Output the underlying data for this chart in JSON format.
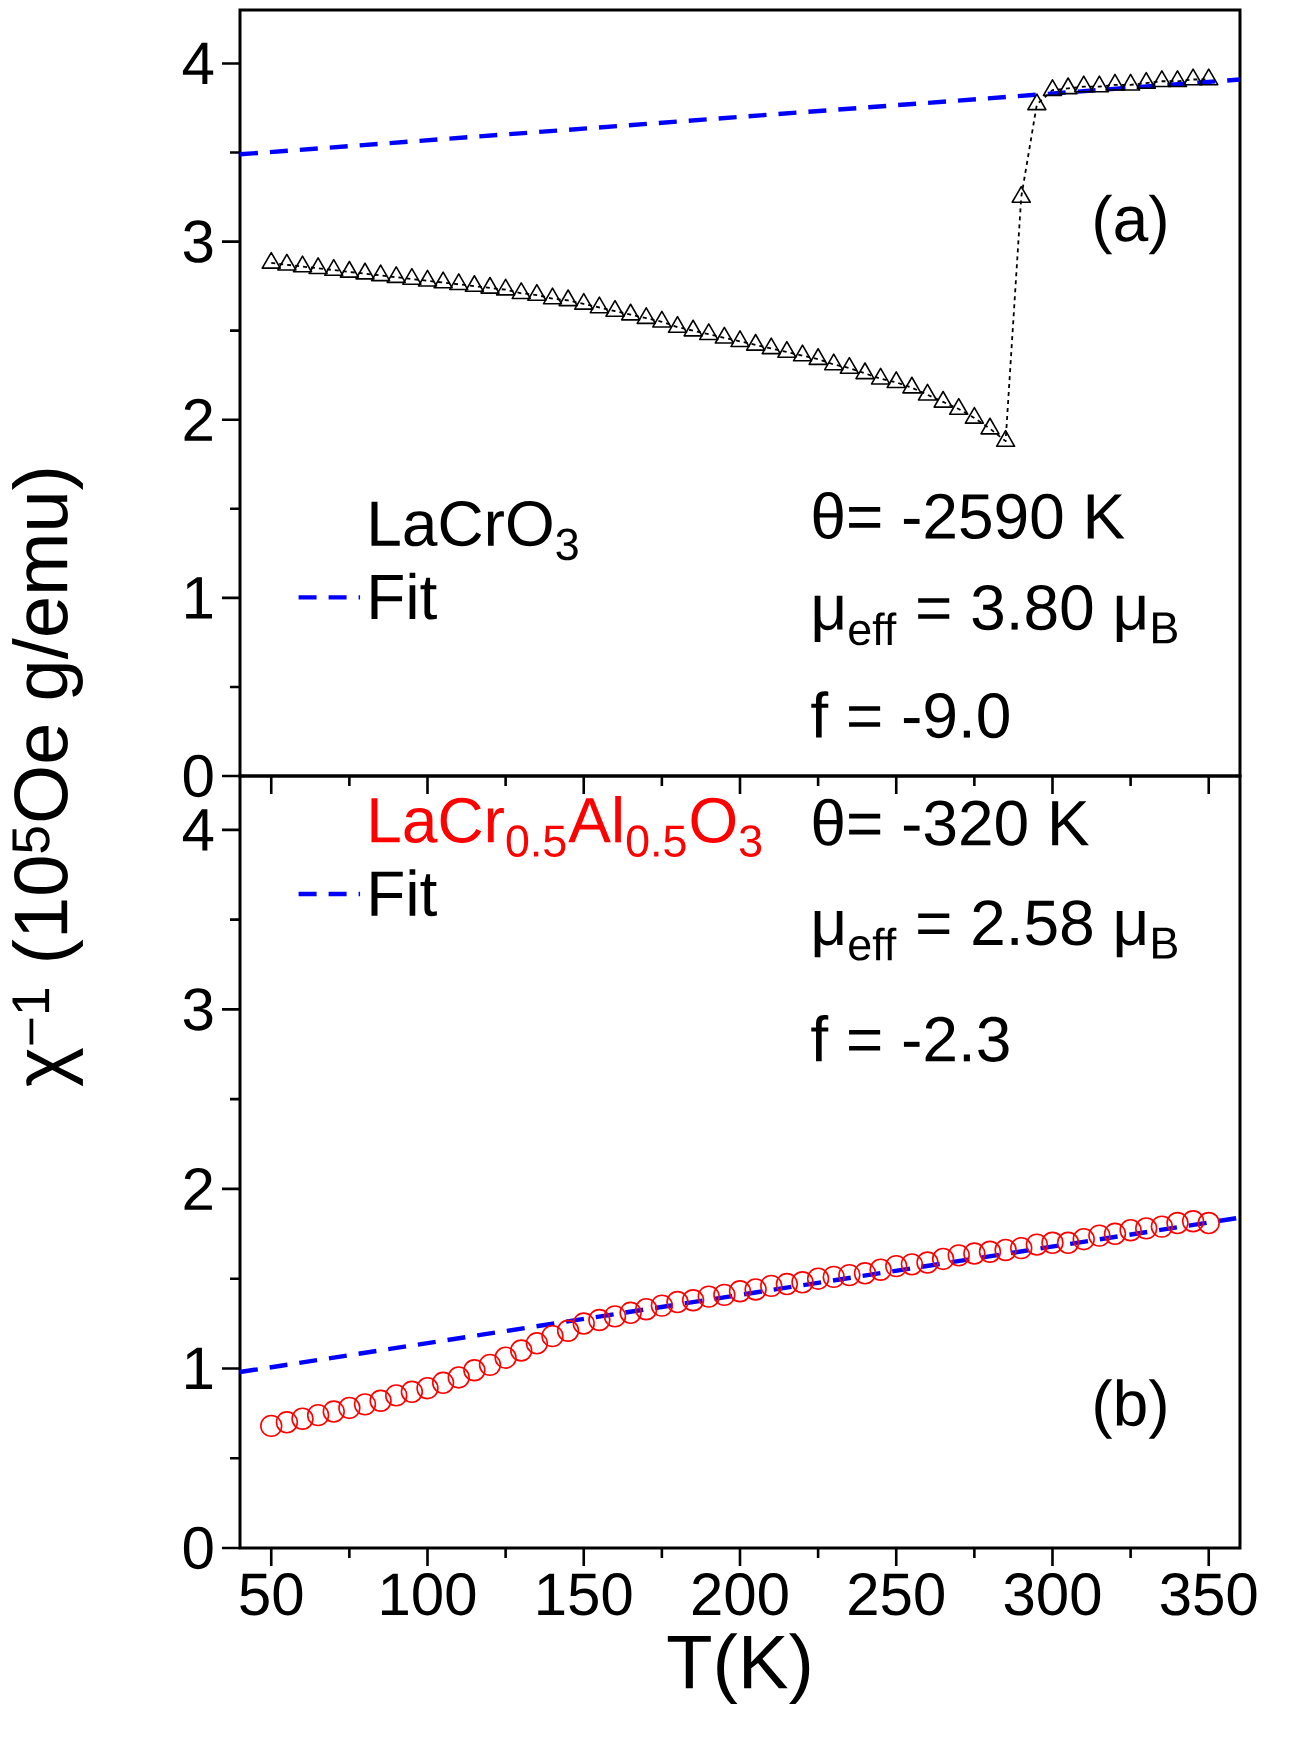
{
  "chart_data": [
    {
      "type": "line",
      "ylabel": "χ$^{−1}$ (10$^{5}$Oe g/emu)",
      "xlim": [
        40,
        360
      ],
      "ylim": [
        0,
        4.3
      ],
      "xticks": [
        50,
        100,
        150,
        200,
        250,
        300,
        350
      ],
      "yticks": [
        0,
        1,
        2,
        3,
        4
      ],
      "tick_labels": "y",
      "legend": "left",
      "annotations": [
        "(a)",
        "θ= -2590 K",
        "μ$_{eff}$ = 3.80 μ$_{B}$",
        "f = -9.0"
      ],
      "series": [
        {
          "name": "LaCrO$_{3}$",
          "color": "#000000",
          "marker": "triangle",
          "line_style": "dotted",
          "x": [
            50,
            55,
            60,
            65,
            70,
            75,
            80,
            85,
            90,
            95,
            100,
            105,
            110,
            115,
            120,
            125,
            130,
            135,
            140,
            145,
            150,
            155,
            160,
            165,
            170,
            175,
            180,
            185,
            190,
            195,
            200,
            205,
            210,
            215,
            220,
            225,
            230,
            235,
            240,
            245,
            250,
            255,
            260,
            265,
            270,
            275,
            280,
            285,
            290,
            295,
            300,
            305,
            310,
            315,
            320,
            325,
            330,
            335,
            340,
            345,
            350
          ],
          "values": [
            2.88,
            2.87,
            2.86,
            2.85,
            2.84,
            2.83,
            2.82,
            2.81,
            2.8,
            2.79,
            2.78,
            2.77,
            2.76,
            2.75,
            2.74,
            2.73,
            2.71,
            2.7,
            2.68,
            2.67,
            2.65,
            2.63,
            2.61,
            2.59,
            2.57,
            2.55,
            2.52,
            2.5,
            2.48,
            2.46,
            2.44,
            2.42,
            2.4,
            2.38,
            2.36,
            2.34,
            2.31,
            2.29,
            2.26,
            2.23,
            2.21,
            2.18,
            2.14,
            2.1,
            2.06,
            2.01,
            1.95,
            1.88,
            3.25,
            3.77,
            3.85,
            3.86,
            3.87,
            3.87,
            3.88,
            3.88,
            3.89,
            3.9,
            3.9,
            3.91,
            3.91
          ]
        },
        {
          "name": "Fit",
          "color": "#0000ff",
          "marker": "none",
          "line_style": "dashed",
          "x": [
            40,
            360
          ],
          "values": [
            3.49,
            3.91
          ]
        }
      ]
    },
    {
      "type": "scatter",
      "xlabel": "T(K)",
      "xlim": [
        40,
        360
      ],
      "ylim": [
        0,
        4.3
      ],
      "xticks": [
        50,
        100,
        150,
        200,
        250,
        300,
        350
      ],
      "yticks": [
        0,
        1,
        2,
        3,
        4
      ],
      "legend": "top left",
      "annotations": [
        "θ= -320 K",
        "μ$_{eff}$ = 2.58 μ$_{B}$",
        "f = -2.3",
        "(b)"
      ],
      "series": [
        {
          "name": "LaCr$_{0.5}$Al$_{0.5}$O$_{3}$",
          "color": "#ff0000",
          "marker": "circle",
          "x": [
            50,
            55,
            60,
            65,
            70,
            75,
            80,
            85,
            90,
            95,
            100,
            105,
            110,
            115,
            120,
            125,
            130,
            135,
            140,
            145,
            150,
            155,
            160,
            165,
            170,
            175,
            180,
            185,
            190,
            195,
            200,
            205,
            210,
            215,
            220,
            225,
            230,
            235,
            240,
            245,
            250,
            255,
            260,
            265,
            270,
            275,
            280,
            285,
            290,
            295,
            300,
            305,
            310,
            315,
            320,
            325,
            330,
            335,
            340,
            345,
            350
          ],
          "values": [
            0.68,
            0.7,
            0.72,
            0.74,
            0.76,
            0.78,
            0.8,
            0.82,
            0.85,
            0.87,
            0.89,
            0.92,
            0.95,
            0.99,
            1.02,
            1.06,
            1.1,
            1.14,
            1.18,
            1.21,
            1.25,
            1.27,
            1.29,
            1.31,
            1.33,
            1.35,
            1.37,
            1.38,
            1.4,
            1.41,
            1.43,
            1.44,
            1.46,
            1.47,
            1.48,
            1.5,
            1.51,
            1.52,
            1.53,
            1.55,
            1.57,
            1.58,
            1.59,
            1.61,
            1.63,
            1.64,
            1.65,
            1.66,
            1.67,
            1.69,
            1.7,
            1.7,
            1.72,
            1.74,
            1.75,
            1.77,
            1.78,
            1.79,
            1.81,
            1.82,
            1.81
          ]
        },
        {
          "name": "Fit",
          "type": "line",
          "color": "#0000ff",
          "marker": "none",
          "line_style": "dashed",
          "x": [
            40,
            360
          ],
          "values": [
            0.98,
            1.84
          ]
        }
      ]
    }
  ]
}
